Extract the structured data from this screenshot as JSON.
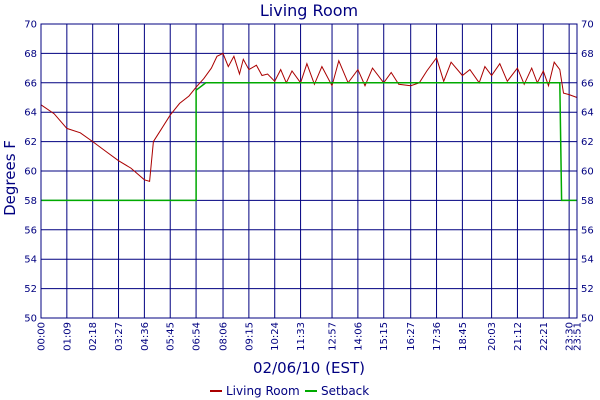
{
  "chart_data": {
    "type": "line",
    "title": "Living Room",
    "xlabel": "02/06/10 (EST)",
    "ylabel": "Degrees F",
    "ylim": [
      50,
      70
    ],
    "yticks": [
      50,
      52,
      54,
      56,
      58,
      60,
      62,
      64,
      66,
      68,
      70
    ],
    "x_domain": [
      "00:00",
      "23:51"
    ],
    "x_ticks": [
      "00:00",
      "01:09",
      "02:18",
      "03:27",
      "04:36",
      "05:45",
      "06:54",
      "08:06",
      "09:15",
      "10:24",
      "11:33",
      "12:57",
      "14:06",
      "15:15",
      "16:27",
      "17:36",
      "18:45",
      "20:03",
      "21:12",
      "22:21",
      "23:30",
      "23:51"
    ],
    "grid": true,
    "legend_position": "bottom",
    "series": [
      {
        "name": "Living Room",
        "color": "#aa0000",
        "points": [
          [
            "00:00",
            64.5
          ],
          [
            "00:35",
            63.9
          ],
          [
            "01:09",
            62.9
          ],
          [
            "01:45",
            62.6
          ],
          [
            "02:18",
            62.0
          ],
          [
            "02:55",
            61.3
          ],
          [
            "03:27",
            60.7
          ],
          [
            "04:00",
            60.2
          ],
          [
            "04:36",
            59.4
          ],
          [
            "04:50",
            59.3
          ],
          [
            "05:00",
            62.0
          ],
          [
            "05:20",
            62.8
          ],
          [
            "05:45",
            63.8
          ],
          [
            "06:10",
            64.6
          ],
          [
            "06:35",
            65.1
          ],
          [
            "06:54",
            65.7
          ],
          [
            "07:15",
            66.3
          ],
          [
            "07:35",
            67.0
          ],
          [
            "07:50",
            67.8
          ],
          [
            "08:06",
            68.0
          ],
          [
            "08:20",
            67.1
          ],
          [
            "08:35",
            67.8
          ],
          [
            "08:50",
            66.6
          ],
          [
            "09:00",
            67.6
          ],
          [
            "09:15",
            66.9
          ],
          [
            "09:35",
            67.2
          ],
          [
            "09:50",
            66.5
          ],
          [
            "10:05",
            66.6
          ],
          [
            "10:24",
            66.1
          ],
          [
            "10:40",
            66.9
          ],
          [
            "10:55",
            66.0
          ],
          [
            "11:10",
            66.8
          ],
          [
            "11:33",
            66.0
          ],
          [
            "11:50",
            67.3
          ],
          [
            "12:10",
            65.9
          ],
          [
            "12:30",
            67.1
          ],
          [
            "12:57",
            65.8
          ],
          [
            "13:15",
            67.5
          ],
          [
            "13:40",
            66.0
          ],
          [
            "14:06",
            66.9
          ],
          [
            "14:25",
            65.8
          ],
          [
            "14:45",
            67.0
          ],
          [
            "15:15",
            66.0
          ],
          [
            "15:35",
            66.7
          ],
          [
            "15:55",
            65.9
          ],
          [
            "16:27",
            65.8
          ],
          [
            "16:50",
            66.0
          ],
          [
            "17:10",
            66.8
          ],
          [
            "17:36",
            67.7
          ],
          [
            "17:55",
            66.1
          ],
          [
            "18:15",
            67.4
          ],
          [
            "18:45",
            66.5
          ],
          [
            "19:05",
            66.9
          ],
          [
            "19:30",
            66.0
          ],
          [
            "19:45",
            67.1
          ],
          [
            "20:03",
            66.5
          ],
          [
            "20:25",
            67.3
          ],
          [
            "20:45",
            66.1
          ],
          [
            "21:12",
            67.0
          ],
          [
            "21:30",
            65.9
          ],
          [
            "21:50",
            67.0
          ],
          [
            "22:05",
            66.0
          ],
          [
            "22:21",
            66.8
          ],
          [
            "22:35",
            65.8
          ],
          [
            "22:50",
            67.4
          ],
          [
            "23:05",
            66.9
          ],
          [
            "23:15",
            65.3
          ],
          [
            "23:30",
            65.2
          ],
          [
            "23:51",
            65.0
          ]
        ]
      },
      {
        "name": "Setback",
        "color": "#00aa00",
        "points": [
          [
            "00:00",
            58
          ],
          [
            "06:54",
            58
          ],
          [
            "06:54",
            65.5
          ],
          [
            "07:20",
            66
          ],
          [
            "23:05",
            66
          ],
          [
            "23:10",
            58
          ],
          [
            "23:51",
            58
          ]
        ]
      }
    ]
  }
}
